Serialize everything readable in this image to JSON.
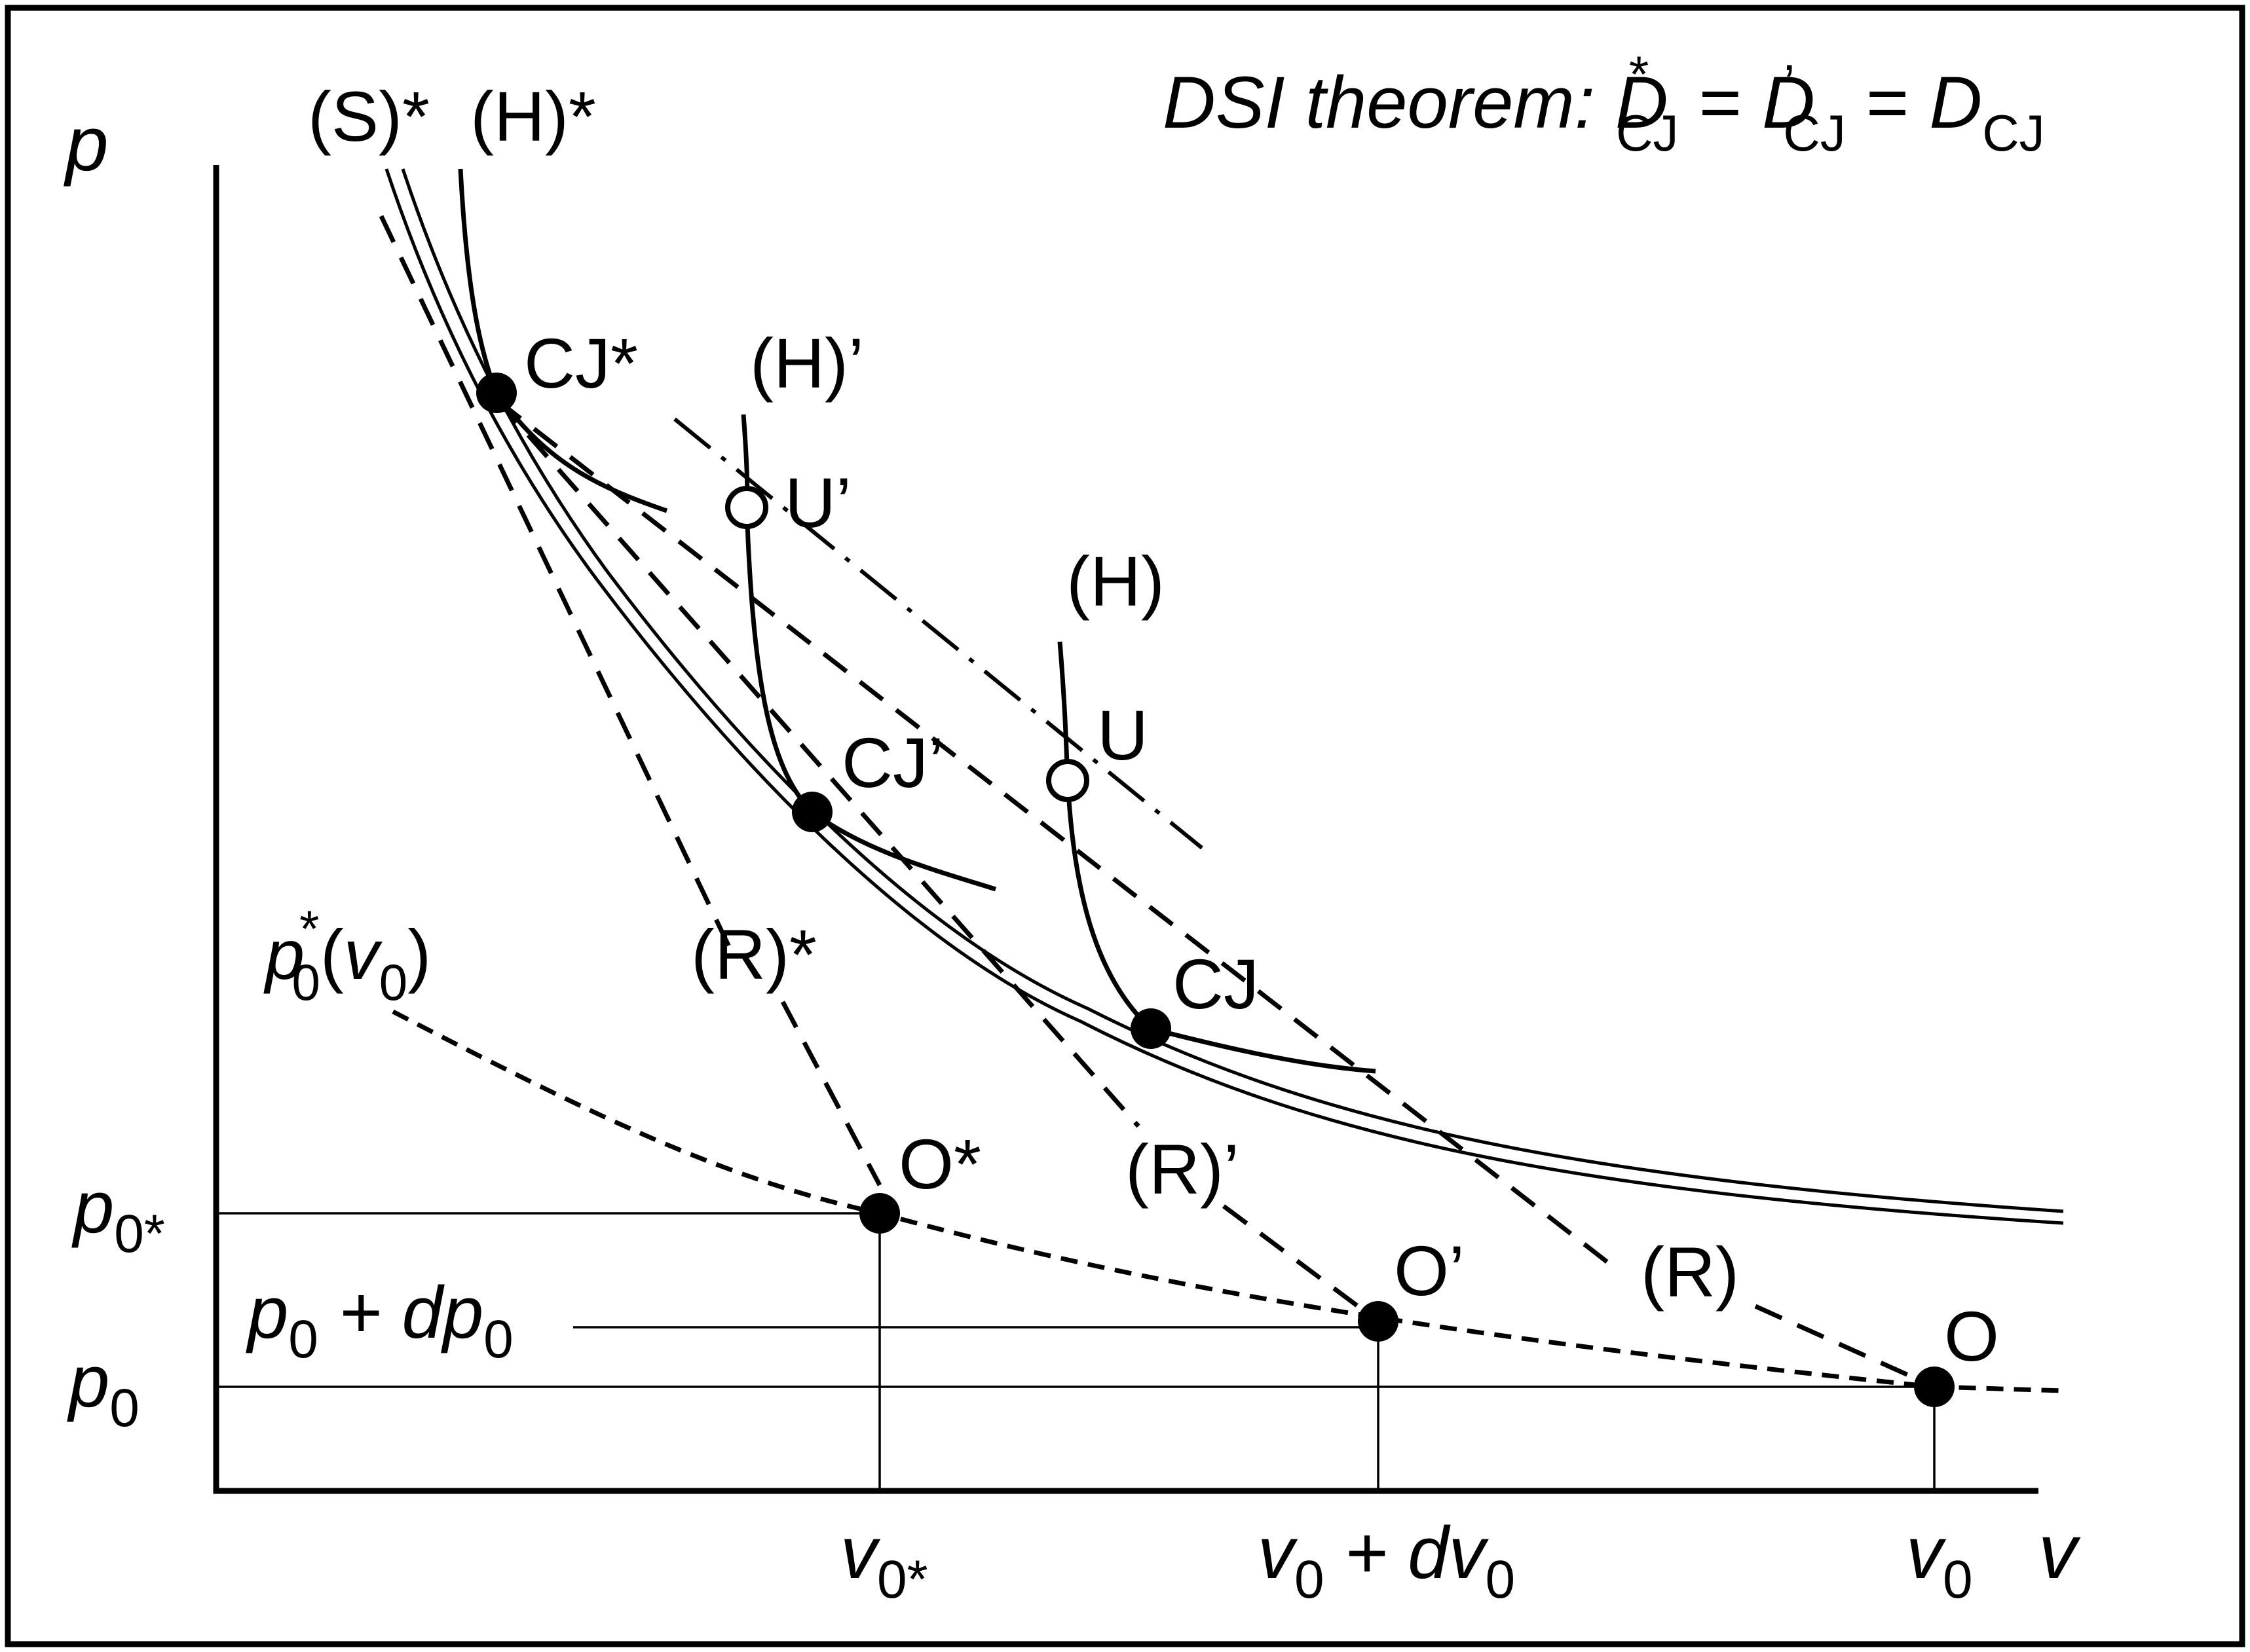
{
  "theorem": {
    "prefix": "DSI theorem: ",
    "d1": "D",
    "d1_sup": "*",
    "d1_sub": "CJ",
    "eq1": " = ",
    "d2": "D",
    "d2_sup": "’",
    "d2_sub": "CJ",
    "eq2": "  = ",
    "d3": "D",
    "d3_sub": "CJ"
  },
  "axes": {
    "y_label": "p",
    "x_label": "v"
  },
  "curve_labels": {
    "s_star": "(S)*",
    "h_star": "(H)*",
    "h_prime": "(H)’",
    "h": "(H)",
    "r_star": "(R)*",
    "r_prime": "(R)’",
    "r": "(R)"
  },
  "points": {
    "cj_star": "CJ*",
    "cj_prime": "CJ’",
    "cj": "CJ",
    "u_prime": "U’",
    "u": "U",
    "o_star": "O*",
    "o_prime": "O’",
    "o": "O"
  },
  "locus_label": {
    "base": "p",
    "sup": "*",
    "sub": "0",
    "open": "(",
    "arg": "v",
    "arg_sub": "0",
    "close": ")"
  },
  "y_ticks": {
    "p0_star": {
      "base": "p",
      "sub": "0*"
    },
    "p0_dp0": {
      "a": "p",
      "a_sub": "0",
      "mid": " + d",
      "b": "p",
      "b_sub": "0"
    },
    "p0": {
      "base": "p",
      "sub": "0"
    }
  },
  "x_ticks": {
    "v0_star": {
      "base": "v",
      "sub": "0*"
    },
    "v0_dv0": {
      "a": "v",
      "a_sub": "0",
      "mid": " + d",
      "b": "v",
      "b_sub": "0"
    },
    "v0": {
      "base": "v",
      "sub": "0"
    }
  }
}
